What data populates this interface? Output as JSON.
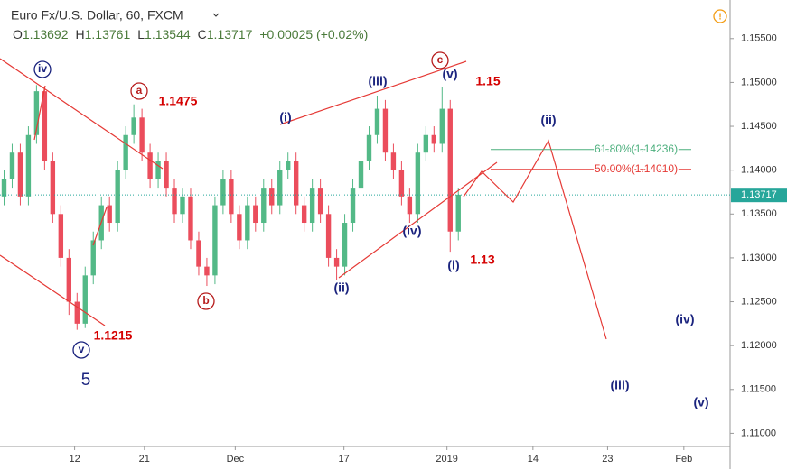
{
  "header": {
    "symbol": "Euro Fx/U.S. Dollar, 60, FXCM",
    "ohlc": [
      {
        "label": "O",
        "value": "1.13692"
      },
      {
        "label": "H",
        "value": "1.13761"
      },
      {
        "label": "L",
        "value": "1.13544"
      },
      {
        "label": "C",
        "value": "1.13717"
      }
    ],
    "change": "+0.00025 (+0.02%)"
  },
  "chart_data": {
    "type": "candlestick",
    "x": [
      0,
      1,
      2,
      3,
      4,
      5,
      6,
      7,
      8,
      9,
      10,
      11,
      12,
      13,
      14,
      15,
      16,
      17,
      18,
      19,
      20,
      21,
      22,
      23,
      24,
      25,
      26,
      27,
      28,
      29,
      30,
      31,
      32,
      33,
      34,
      35,
      36,
      37,
      38,
      39,
      40,
      41,
      42,
      43,
      44,
      45,
      46,
      47,
      48,
      49,
      50,
      51,
      52,
      53,
      54,
      55,
      56
    ],
    "open": [
      1.137,
      1.139,
      1.142,
      1.137,
      1.144,
      1.149,
      1.141,
      1.135,
      1.13,
      1.125,
      1.1225,
      1.128,
      1.132,
      1.136,
      1.134,
      1.14,
      1.144,
      1.146,
      1.142,
      1.139,
      1.141,
      1.138,
      1.135,
      1.137,
      1.132,
      1.129,
      1.128,
      1.136,
      1.139,
      1.135,
      1.132,
      1.136,
      1.134,
      1.138,
      1.136,
      1.14,
      1.141,
      1.136,
      1.134,
      1.138,
      1.135,
      1.13,
      1.129,
      1.134,
      1.138,
      1.141,
      1.144,
      1.147,
      1.142,
      1.14,
      1.137,
      1.135,
      1.142,
      1.144,
      1.143,
      1.147,
      1.133
    ],
    "high": [
      1.14,
      1.143,
      1.143,
      1.145,
      1.1497,
      1.1495,
      1.142,
      1.136,
      1.131,
      1.126,
      1.129,
      1.133,
      1.137,
      1.137,
      1.141,
      1.145,
      1.1475,
      1.147,
      1.143,
      1.142,
      1.142,
      1.139,
      1.138,
      1.138,
      1.133,
      1.13,
      1.137,
      1.14,
      1.14,
      1.136,
      1.137,
      1.137,
      1.139,
      1.139,
      1.141,
      1.142,
      1.142,
      1.137,
      1.139,
      1.139,
      1.136,
      1.131,
      1.135,
      1.139,
      1.142,
      1.145,
      1.1485,
      1.148,
      1.143,
      1.141,
      1.138,
      1.143,
      1.145,
      1.145,
      1.1495,
      1.148,
      1.138
    ],
    "low": [
      1.136,
      1.138,
      1.136,
      1.136,
      1.143,
      1.14,
      1.134,
      1.129,
      1.1235,
      1.1218,
      1.122,
      1.127,
      1.131,
      1.133,
      1.133,
      1.139,
      1.143,
      1.141,
      1.138,
      1.138,
      1.137,
      1.134,
      1.134,
      1.131,
      1.128,
      1.1268,
      1.127,
      1.135,
      1.134,
      1.131,
      1.131,
      1.133,
      1.133,
      1.135,
      1.135,
      1.139,
      1.135,
      1.133,
      1.133,
      1.134,
      1.129,
      1.1275,
      1.128,
      1.133,
      1.137,
      1.14,
      1.143,
      1.141,
      1.139,
      1.136,
      1.134,
      1.134,
      1.141,
      1.142,
      1.142,
      1.1307,
      1.132
    ],
    "close": [
      1.139,
      1.142,
      1.137,
      1.144,
      1.149,
      1.141,
      1.135,
      1.13,
      1.125,
      1.1225,
      1.128,
      1.132,
      1.136,
      1.134,
      1.14,
      1.144,
      1.146,
      1.142,
      1.139,
      1.141,
      1.138,
      1.135,
      1.137,
      1.132,
      1.129,
      1.128,
      1.136,
      1.139,
      1.135,
      1.132,
      1.136,
      1.134,
      1.138,
      1.136,
      1.14,
      1.141,
      1.136,
      1.134,
      1.138,
      1.135,
      1.13,
      1.129,
      1.134,
      1.138,
      1.141,
      1.144,
      1.147,
      1.142,
      1.14,
      1.137,
      1.135,
      1.142,
      1.144,
      1.143,
      1.147,
      1.133,
      1.1372
    ],
    "up_color": "#53b987",
    "down_color": "#eb4d5c",
    "xlim": [
      -0.5,
      89.5
    ],
    "xticks": [
      {
        "value": 8.7,
        "label": "12"
      },
      {
        "value": 17.3,
        "label": "21"
      },
      {
        "value": 28.5,
        "label": "Dec"
      },
      {
        "value": 41.9,
        "label": "17"
      },
      {
        "value": 54.6,
        "label": "2019"
      },
      {
        "value": 65.2,
        "label": "14"
      },
      {
        "value": 74.4,
        "label": "23"
      },
      {
        "value": 83.8,
        "label": "Feb"
      }
    ],
    "ylim": [
      1.1085,
      1.1594
    ],
    "yticks": [
      {
        "value": 1.155,
        "label": "1.15500"
      },
      {
        "value": 1.15,
        "label": "1.15000"
      },
      {
        "value": 1.145,
        "label": "1.14500"
      },
      {
        "value": 1.14,
        "label": "1.14000"
      },
      {
        "value": 1.135,
        "label": "1.13500"
      },
      {
        "value": 1.13,
        "label": "1.13000"
      },
      {
        "value": 1.125,
        "label": "1.12500"
      },
      {
        "value": 1.12,
        "label": "1.12000"
      },
      {
        "value": 1.115,
        "label": "1.11500"
      },
      {
        "value": 1.11,
        "label": "1.11000"
      }
    ],
    "grid": false,
    "last_price": {
      "value": 1.13717,
      "label": "1.13717"
    },
    "fib_levels": [
      {
        "value": 1.14236,
        "label": "61.80%(1.14236)",
        "color": "#4caf7d"
      },
      {
        "value": 1.1401,
        "label": "50.00%(1.14010)",
        "color": "#e53935"
      }
    ],
    "annotations": [
      {
        "text": "iv",
        "color": "#1a237e",
        "circled": true
      },
      {
        "text": "v",
        "color": "#1a237e",
        "circled": true
      },
      {
        "text": "5",
        "color": "#1a237e",
        "circled": false
      },
      {
        "text": "1.1215",
        "color": "#d50000",
        "circled": false
      },
      {
        "text": "a",
        "color": "#b71c1c",
        "circled": true
      },
      {
        "text": "1.1475",
        "color": "#d50000",
        "circled": false
      },
      {
        "text": "b",
        "color": "#b71c1c",
        "circled": true
      },
      {
        "text": "(i)",
        "color": "#1a237e",
        "circled": false
      },
      {
        "text": "(ii)",
        "color": "#1a237e",
        "circled": false
      },
      {
        "text": "(iii)",
        "color": "#1a237e",
        "circled": false
      },
      {
        "text": "(iv)",
        "color": "#1a237e",
        "circled": false
      },
      {
        "text": "(v)",
        "color": "#1a237e",
        "circled": false
      },
      {
        "text": "c",
        "color": "#b71c1c",
        "circled": true
      },
      {
        "text": "1.15",
        "color": "#d50000",
        "circled": false
      },
      {
        "text": "(i)",
        "color": "#1a237e",
        "circled": false
      },
      {
        "text": "1.13",
        "color": "#d50000",
        "circled": false
      },
      {
        "text": "(ii)",
        "color": "#1a237e",
        "circled": false
      },
      {
        "text": "(iv)",
        "color": "#1a237e",
        "circled": false
      },
      {
        "text": "(iii)",
        "color": "#1a237e",
        "circled": false
      },
      {
        "text": "(v)",
        "color": "#1a237e",
        "circled": false
      }
    ]
  }
}
